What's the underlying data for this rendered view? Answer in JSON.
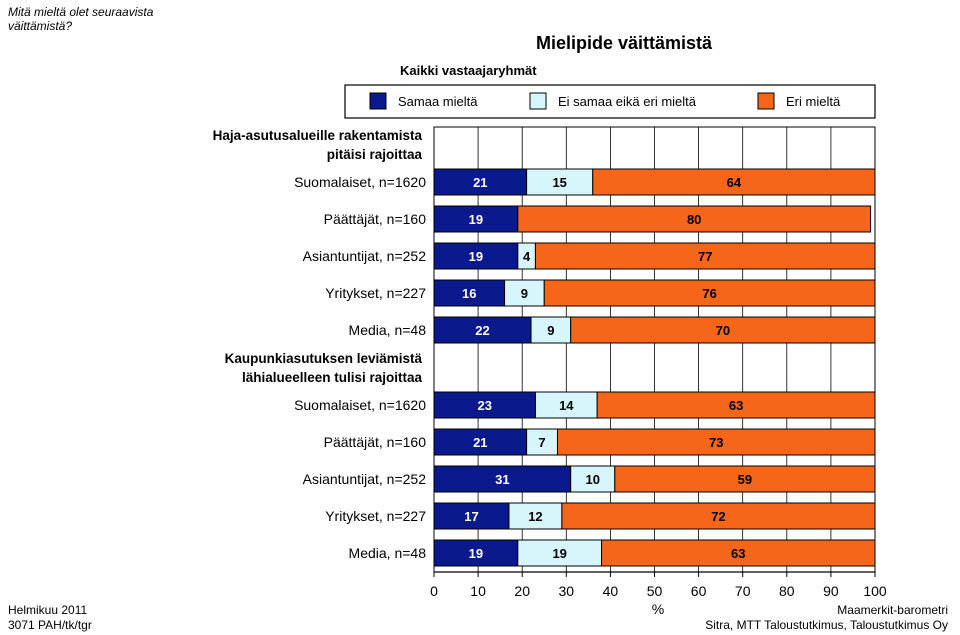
{
  "header": {
    "question": "Mitä mieltä olet seuraavista väittämistä?",
    "title": "Mielipide väittämistä",
    "subtitle": "Kaikki vastaajaryhmät"
  },
  "footer": {
    "left_line1": "Helmikuu 2011",
    "left_line2": "3071 PAH/tk/tgr",
    "right_line1": "Maamerkit-barometri",
    "right_line2": "Sitra, MTT Taloustutkimus, Taloustutkimus Oy"
  },
  "colors": {
    "agree": "#0a1a8c",
    "neutral": "#d6f6fb",
    "disagree": "#f5661a"
  },
  "chart_data": {
    "type": "bar",
    "orientation": "horizontal",
    "stacked": true,
    "xlabel": "%",
    "xlim": [
      0,
      100
    ],
    "xticks": [
      0,
      10,
      20,
      30,
      40,
      50,
      60,
      70,
      80,
      90,
      100
    ],
    "grid": true,
    "legend_position": "top",
    "series_names": [
      "Samaa mieltä",
      "Ei samaa eikä eri mieltä",
      "Eri mieltä"
    ],
    "groups": [
      {
        "title": "Haja-asutusalueille rakentamista pitäisi rajoittaa",
        "title_line1": "Haja-asutusalueille rakentamista",
        "title_line2": "pitäisi rajoittaa",
        "rows": [
          {
            "label": "Suomalaiset, n=1620",
            "values": [
              21,
              15,
              64
            ]
          },
          {
            "label": "Päättäjät, n=160",
            "values": [
              19,
              0,
              80
            ]
          },
          {
            "label": "Asiantuntijat, n=252",
            "values": [
              19,
              4,
              77
            ]
          },
          {
            "label": "Yritykset, n=227",
            "values": [
              16,
              9,
              76
            ]
          },
          {
            "label": "Media, n=48",
            "values": [
              22,
              9,
              70
            ]
          }
        ]
      },
      {
        "title": "Kaupunkiasutuksen leviämistä lähialueelleen tulisi rajoittaa",
        "title_line1": "Kaupunkiasutuksen leviämistä",
        "title_line2": "lähialueelleen tulisi rajoittaa",
        "rows": [
          {
            "label": "Suomalaiset, n=1620",
            "values": [
              23,
              14,
              63
            ]
          },
          {
            "label": "Päättäjät, n=160",
            "values": [
              21,
              7,
              73
            ]
          },
          {
            "label": "Asiantuntijat, n=252",
            "values": [
              31,
              10,
              59
            ]
          },
          {
            "label": "Yritykset, n=227",
            "values": [
              17,
              12,
              72
            ]
          },
          {
            "label": "Media, n=48",
            "values": [
              19,
              19,
              63
            ]
          }
        ]
      }
    ]
  }
}
